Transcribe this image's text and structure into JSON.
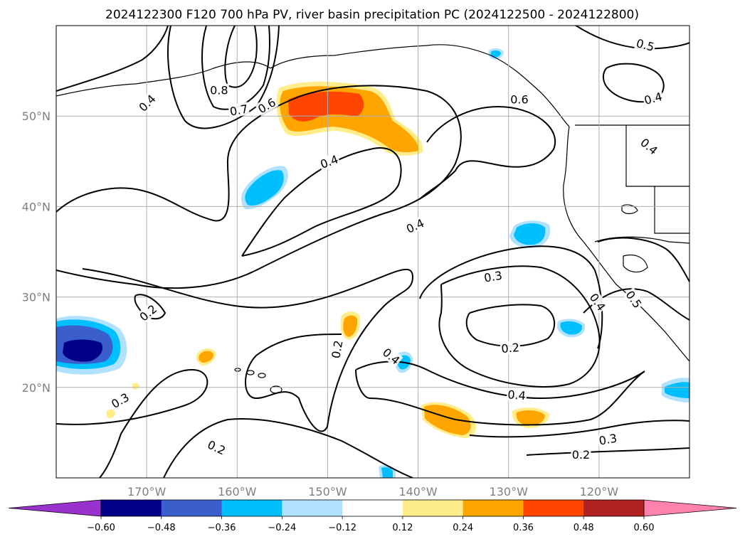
{
  "chart_data": {
    "type": "contour-map",
    "title": "2024122300 F120 700 hPa PV, river basin precipitation PC (2024122500 - 2024122800)",
    "lon_range": [
      -180,
      -110
    ],
    "lat_range": [
      10,
      60
    ],
    "x_ticks": [
      {
        "lon": -170,
        "label": "170°W"
      },
      {
        "lon": -160,
        "label": "160°W"
      },
      {
        "lon": -150,
        "label": "150°W"
      },
      {
        "lon": -140,
        "label": "140°W"
      },
      {
        "lon": -130,
        "label": "130°W"
      },
      {
        "lon": -120,
        "label": "120°W"
      }
    ],
    "y_ticks": [
      {
        "lat": 20,
        "label": "20°N"
      },
      {
        "lat": 30,
        "label": "30°N"
      },
      {
        "lat": 40,
        "label": "40°N"
      },
      {
        "lat": 50,
        "label": "50°N"
      }
    ],
    "grid": true,
    "colorbar": {
      "colors": [
        "#9932cc",
        "#00008b",
        "#3a5fcd",
        "#00bfff",
        "#b0e2ff",
        "#ffffff",
        "#ffec8b",
        "#ffa500",
        "#ff4500",
        "#b22222",
        "#ff82ab"
      ],
      "tick_labels": [
        "−0.60",
        "−0.48",
        "−0.36",
        "−0.24",
        "−0.12",
        "0.12",
        "0.24",
        "0.36",
        "0.48",
        "0.60"
      ],
      "extend": "both"
    },
    "contour_labels": [
      {
        "text": "0.8",
        "lon": -162.0,
        "lat": 52.8,
        "angle": 0
      },
      {
        "text": "0.7",
        "lon": -159.8,
        "lat": 50.6,
        "angle": -10
      },
      {
        "text": "0.6",
        "lon": -156.7,
        "lat": 51.1,
        "angle": -30
      },
      {
        "text": "0.4",
        "lon": -169.9,
        "lat": 51.4,
        "angle": -45
      },
      {
        "text": "0.4",
        "lon": -149.8,
        "lat": 44.9,
        "angle": -20
      },
      {
        "text": "0.4",
        "lon": -140.3,
        "lat": 37.8,
        "angle": -25
      },
      {
        "text": "0.3",
        "lon": -131.7,
        "lat": 32.2,
        "angle": -10
      },
      {
        "text": "0.2",
        "lon": -169.8,
        "lat": 28.2,
        "angle": -40
      },
      {
        "text": "0.2",
        "lon": -148.9,
        "lat": 24.2,
        "angle": -80
      },
      {
        "text": "0.4",
        "lon": -143.0,
        "lat": 23.4,
        "angle": 40
      },
      {
        "text": "0.2",
        "lon": -129.8,
        "lat": 24.3,
        "angle": -5
      },
      {
        "text": "0.4",
        "lon": -129.1,
        "lat": 19.1,
        "angle": 5
      },
      {
        "text": "0.3",
        "lon": -172.9,
        "lat": 18.5,
        "angle": -30
      },
      {
        "text": "0.2",
        "lon": -162.3,
        "lat": 13.3,
        "angle": 25
      },
      {
        "text": "0.3",
        "lon": -119.0,
        "lat": 14.2,
        "angle": -10
      },
      {
        "text": "0.2",
        "lon": -122.0,
        "lat": 12.5,
        "angle": 0
      },
      {
        "text": "0.6",
        "lon": -128.8,
        "lat": 51.8,
        "angle": 0
      },
      {
        "text": "0.5",
        "lon": -114.9,
        "lat": 57.8,
        "angle": 15
      },
      {
        "text": "0.4",
        "lon": -114.0,
        "lat": 51.9,
        "angle": -15
      },
      {
        "text": "0.4",
        "lon": -114.5,
        "lat": 46.6,
        "angle": 40
      },
      {
        "text": "0.4",
        "lon": -120.2,
        "lat": 29.4,
        "angle": 55
      },
      {
        "text": "0.5",
        "lon": -116.2,
        "lat": 29.7,
        "angle": 55
      }
    ]
  }
}
